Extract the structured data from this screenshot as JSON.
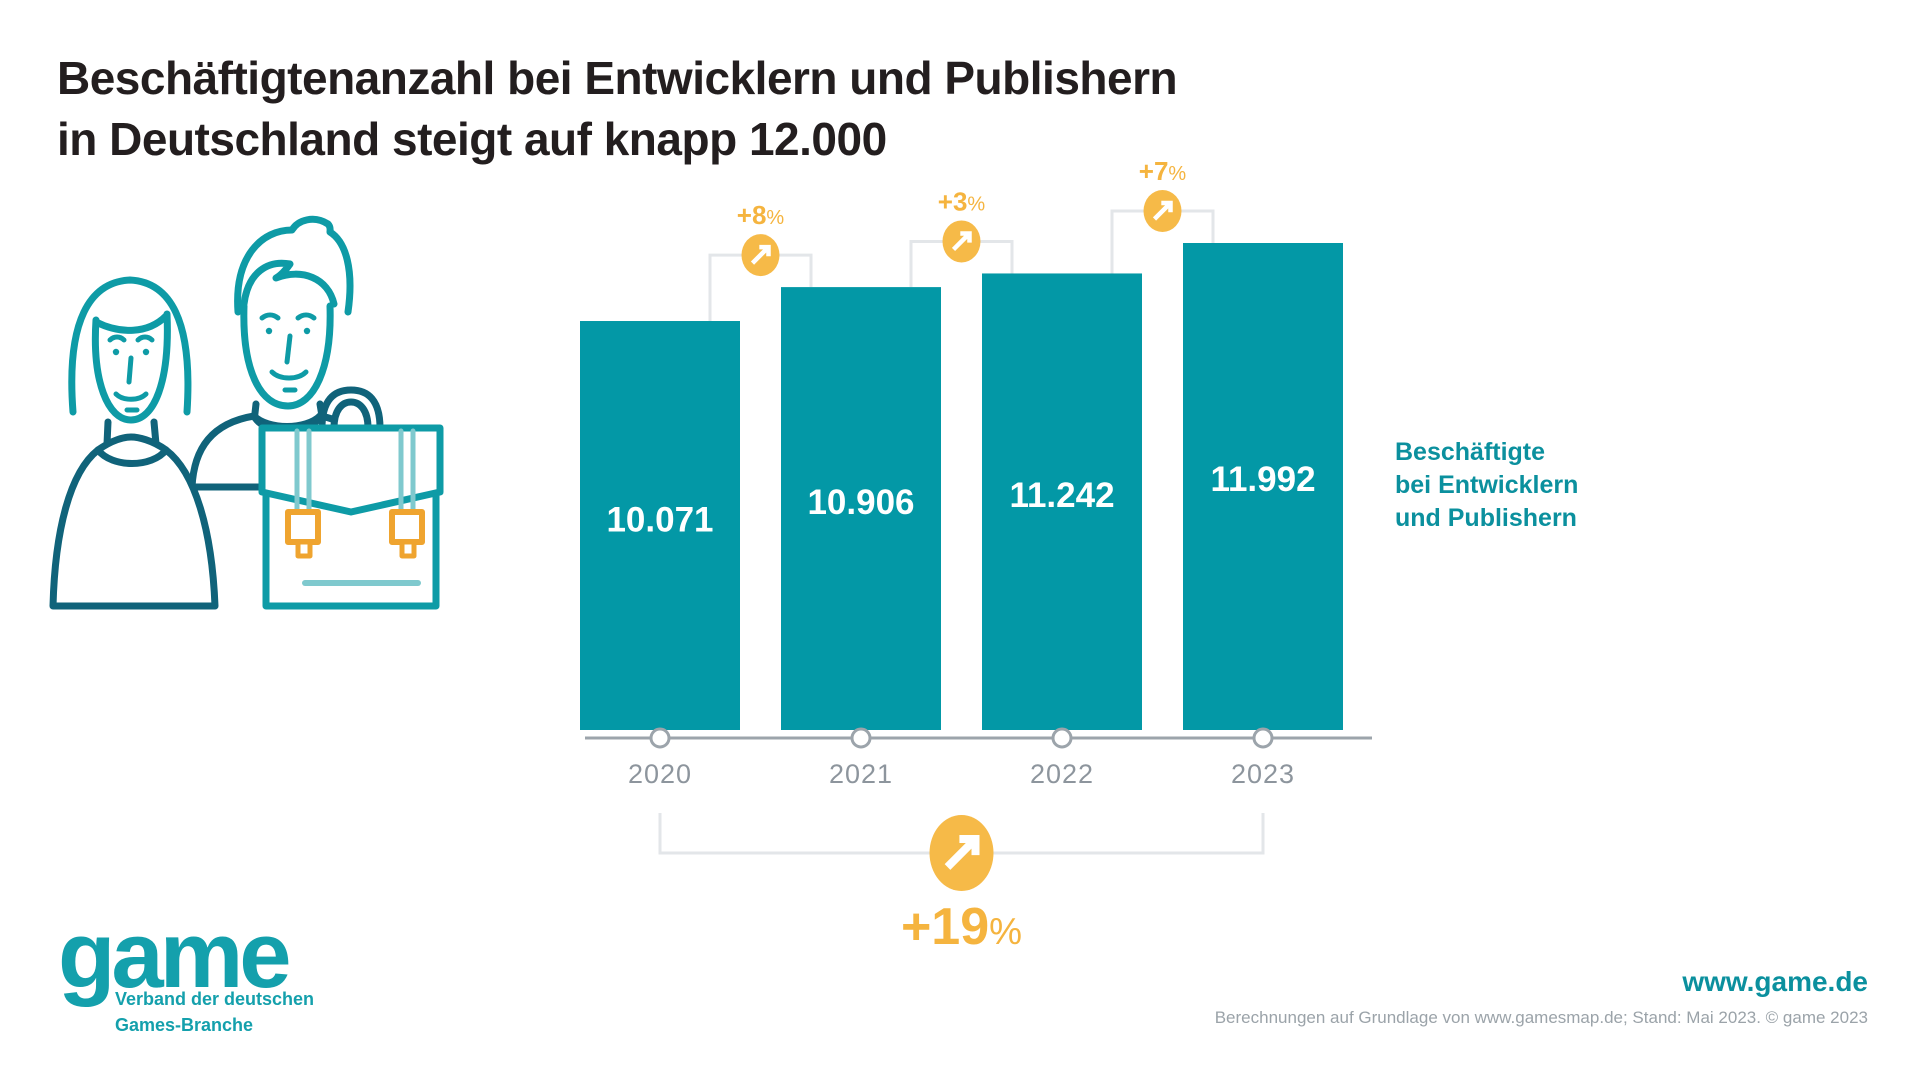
{
  "title": {
    "text": "Beschäftigtenanzahl bei Entwicklern und Publishern\nin Deutschland steigt auf knapp 12.000"
  },
  "chart_data": {
    "type": "bar",
    "categories": [
      "2020",
      "2021",
      "2022",
      "2023"
    ],
    "values": [
      10071,
      10906,
      11242,
      11992
    ],
    "value_labels": [
      "10.071",
      "10.906",
      "11.242",
      "11.992"
    ],
    "changes": [
      "+8%",
      "+3%",
      "+7%"
    ],
    "total_change": "+19%",
    "title": "Beschäftigtenanzahl bei Entwicklern und Publishern in Deutschland steigt auf knapp 12.000",
    "xlabel": "",
    "ylabel": "",
    "ylim": [
      0,
      11992
    ],
    "legend_position": "right",
    "grid": false,
    "series": [
      {
        "name": "Beschäftigte bei Entwicklern und Publishern",
        "values": [
          10071,
          10906,
          11242,
          11992
        ]
      }
    ],
    "bar_color": "#0398a6",
    "accent_color": "#f6ba48",
    "accent_text_color": "#f5b43f",
    "axis_color": "#9ca4ab",
    "bracket_color": "#e3e6e9"
  },
  "legend": {
    "text": "Beschäftigte\nbei Entwicklern\nund Publishern"
  },
  "logo": {
    "wordmark": "game",
    "tagline": "Verband der deutschen\nGames-Branche"
  },
  "footer": {
    "website": "www.game.de",
    "source": "Berechnungen auf Grundlage von www.gamesmap.de; Stand: Mai 2023. © game 2023"
  },
  "icons": {
    "badge_arrow": "arrow-up-right-icon",
    "illustration": "two-people-with-briefcase"
  }
}
